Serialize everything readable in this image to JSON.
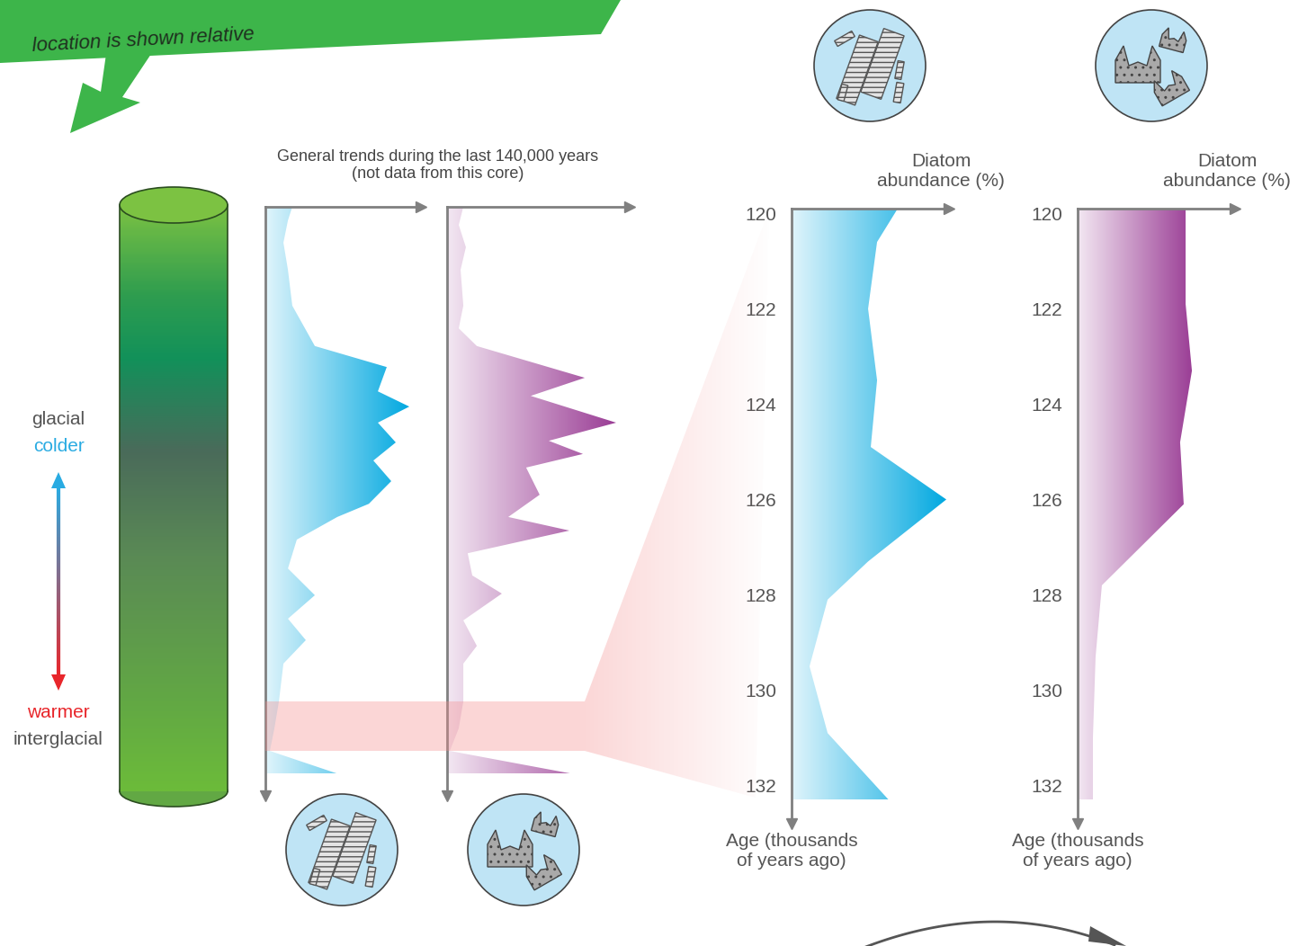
{
  "banner": "location is shown relative",
  "core_scale": {
    "top": [
      "glacial",
      "colder"
    ],
    "bottom": [
      "warmer",
      "interglacial"
    ]
  },
  "group_title": "General trends during the last 140,000 years\n(not data from this core)",
  "chart_data": [
    {
      "type": "area",
      "orientation": "horizontal",
      "color": "#00a8e0",
      "tick_labels": false,
      "xlim": [
        0,
        100
      ],
      "ylim": [
        143,
        0
      ],
      "y": [
        0,
        3.3,
        8.7,
        15.3,
        24.0,
        33.8,
        38.9,
        44.8,
        48.5,
        52.4,
        57.2,
        61.6,
        66.6,
        72.1,
        75.3,
        80.8,
        87.8,
        94.3,
        100,
        105.2,
        110.9,
        120.1,
        126.6,
        132.1,
        137.6
      ],
      "values": [
        17.3,
        14.5,
        11.6,
        14.5,
        17.3,
        31.8,
        78.0,
        72.3,
        92.5,
        72.3,
        83.8,
        69.4,
        80.9,
        66.5,
        46.2,
        20.2,
        14.5,
        31.8,
        14.5,
        26.0,
        11.6,
        8.7,
        5.8,
        2.9,
        46.2
      ]
    },
    {
      "type": "area",
      "orientation": "horizontal",
      "color": "#9a3d95",
      "tick_labels": false,
      "xlim": [
        0,
        100
      ],
      "ylim": [
        143,
        0
      ],
      "y": [
        0,
        4.4,
        9.8,
        15.3,
        24.0,
        29.5,
        33.8,
        41.5,
        45.9,
        52.4,
        56.8,
        60.0,
        63.3,
        69.9,
        75.3,
        78.6,
        84.1,
        89.5,
        93.9,
        100.4,
        106.6,
        110.9,
        120.1,
        126.6,
        132.1,
        137.6
      ],
      "values": [
        8.9,
        6.4,
        10.3,
        7.4,
        8.9,
        6.4,
        16.3,
        75.4,
        45.8,
        92.6,
        55.7,
        74.4,
        43.3,
        50.7,
        33.5,
        67.0,
        11.3,
        13.8,
        30.0,
        8.9,
        16.3,
        8.9,
        8.9,
        6.4,
        1.5,
        68.0
      ]
    },
    {
      "type": "area",
      "orientation": "horizontal",
      "color": "#00a8e0",
      "tick_labels": "y",
      "xlabel": "Diatom\nabundance (%)",
      "ylabel": "Age (thousands\nof years ago)",
      "xlim": [
        0,
        100
      ],
      "ylim": [
        132.8,
        119.9
      ],
      "yticks": [
        120,
        122,
        124,
        126,
        128,
        130,
        132
      ],
      "y": [
        119.9,
        120.6,
        122.0,
        123.5,
        124.9,
        126.0,
        127.3,
        128.1,
        129.5,
        130.9,
        132.3
      ],
      "values": [
        67.4,
        54.3,
        48.6,
        54.3,
        50.3,
        98.3,
        48.6,
        22.9,
        11.4,
        22.9,
        61.7
      ]
    },
    {
      "type": "area",
      "orientation": "horizontal",
      "color": "#9a3d95",
      "tick_labels": "y",
      "xlabel": "Diatom\nabundance (%)",
      "ylabel": "Age (thousands\nof years ago)",
      "xlim": [
        0,
        100
      ],
      "ylim": [
        132.8,
        119.9
      ],
      "yticks": [
        120,
        122,
        124,
        126,
        128,
        130,
        132
      ],
      "y": [
        119.9,
        121.9,
        123.3,
        124.8,
        126.1,
        127.8,
        129.3,
        131.0,
        132.3
      ],
      "values": [
        68.6,
        68.6,
        72.6,
        65.1,
        67.4,
        15.4,
        11.4,
        9.7,
        9.7
      ]
    }
  ]
}
